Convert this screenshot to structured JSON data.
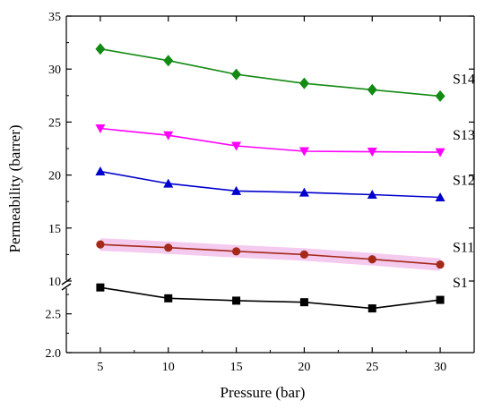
{
  "chart_data": {
    "type": "line",
    "title": "",
    "xlabel": "Pressure (bar)",
    "ylabel": "Permeability (barrer)",
    "x": [
      5,
      10,
      15,
      20,
      25,
      30
    ],
    "xlim": [
      2.5,
      32.5
    ],
    "xticks": [
      "5",
      "10",
      "15",
      "20",
      "25",
      "30"
    ],
    "broken_y_axis": true,
    "y_upper": {
      "range": [
        10,
        35
      ],
      "ticks": [
        "10",
        "15",
        "20",
        "25",
        "30",
        "35"
      ]
    },
    "y_lower": {
      "range": [
        2.0,
        2.9
      ],
      "ticks": [
        "2.0",
        "2.5"
      ]
    },
    "grid": false,
    "series": [
      {
        "name": "S14",
        "marker": "diamond",
        "color": "#138a13",
        "segment": "upper",
        "values": [
          31.9,
          30.8,
          29.5,
          28.65,
          28.05,
          27.45
        ]
      },
      {
        "name": "S13",
        "marker": "triangle-down",
        "color": "#ff00ff",
        "segment": "upper",
        "values": [
          24.4,
          23.75,
          22.75,
          22.25,
          22.2,
          22.15
        ]
      },
      {
        "name": "S12",
        "marker": "triangle-up",
        "color": "#0000cc",
        "segment": "upper",
        "values": [
          20.35,
          19.2,
          18.5,
          18.35,
          18.15,
          17.9
        ]
      },
      {
        "name": "S11",
        "marker": "circle",
        "color": "#a52a1a",
        "band_color": "#f4cbef",
        "segment": "upper",
        "values": [
          13.45,
          13.15,
          12.8,
          12.5,
          12.05,
          11.55
        ]
      },
      {
        "name": "S1",
        "marker": "square",
        "color": "#000000",
        "segment": "lower",
        "values": [
          2.84,
          2.7,
          2.67,
          2.65,
          2.57,
          2.68
        ]
      }
    ]
  }
}
